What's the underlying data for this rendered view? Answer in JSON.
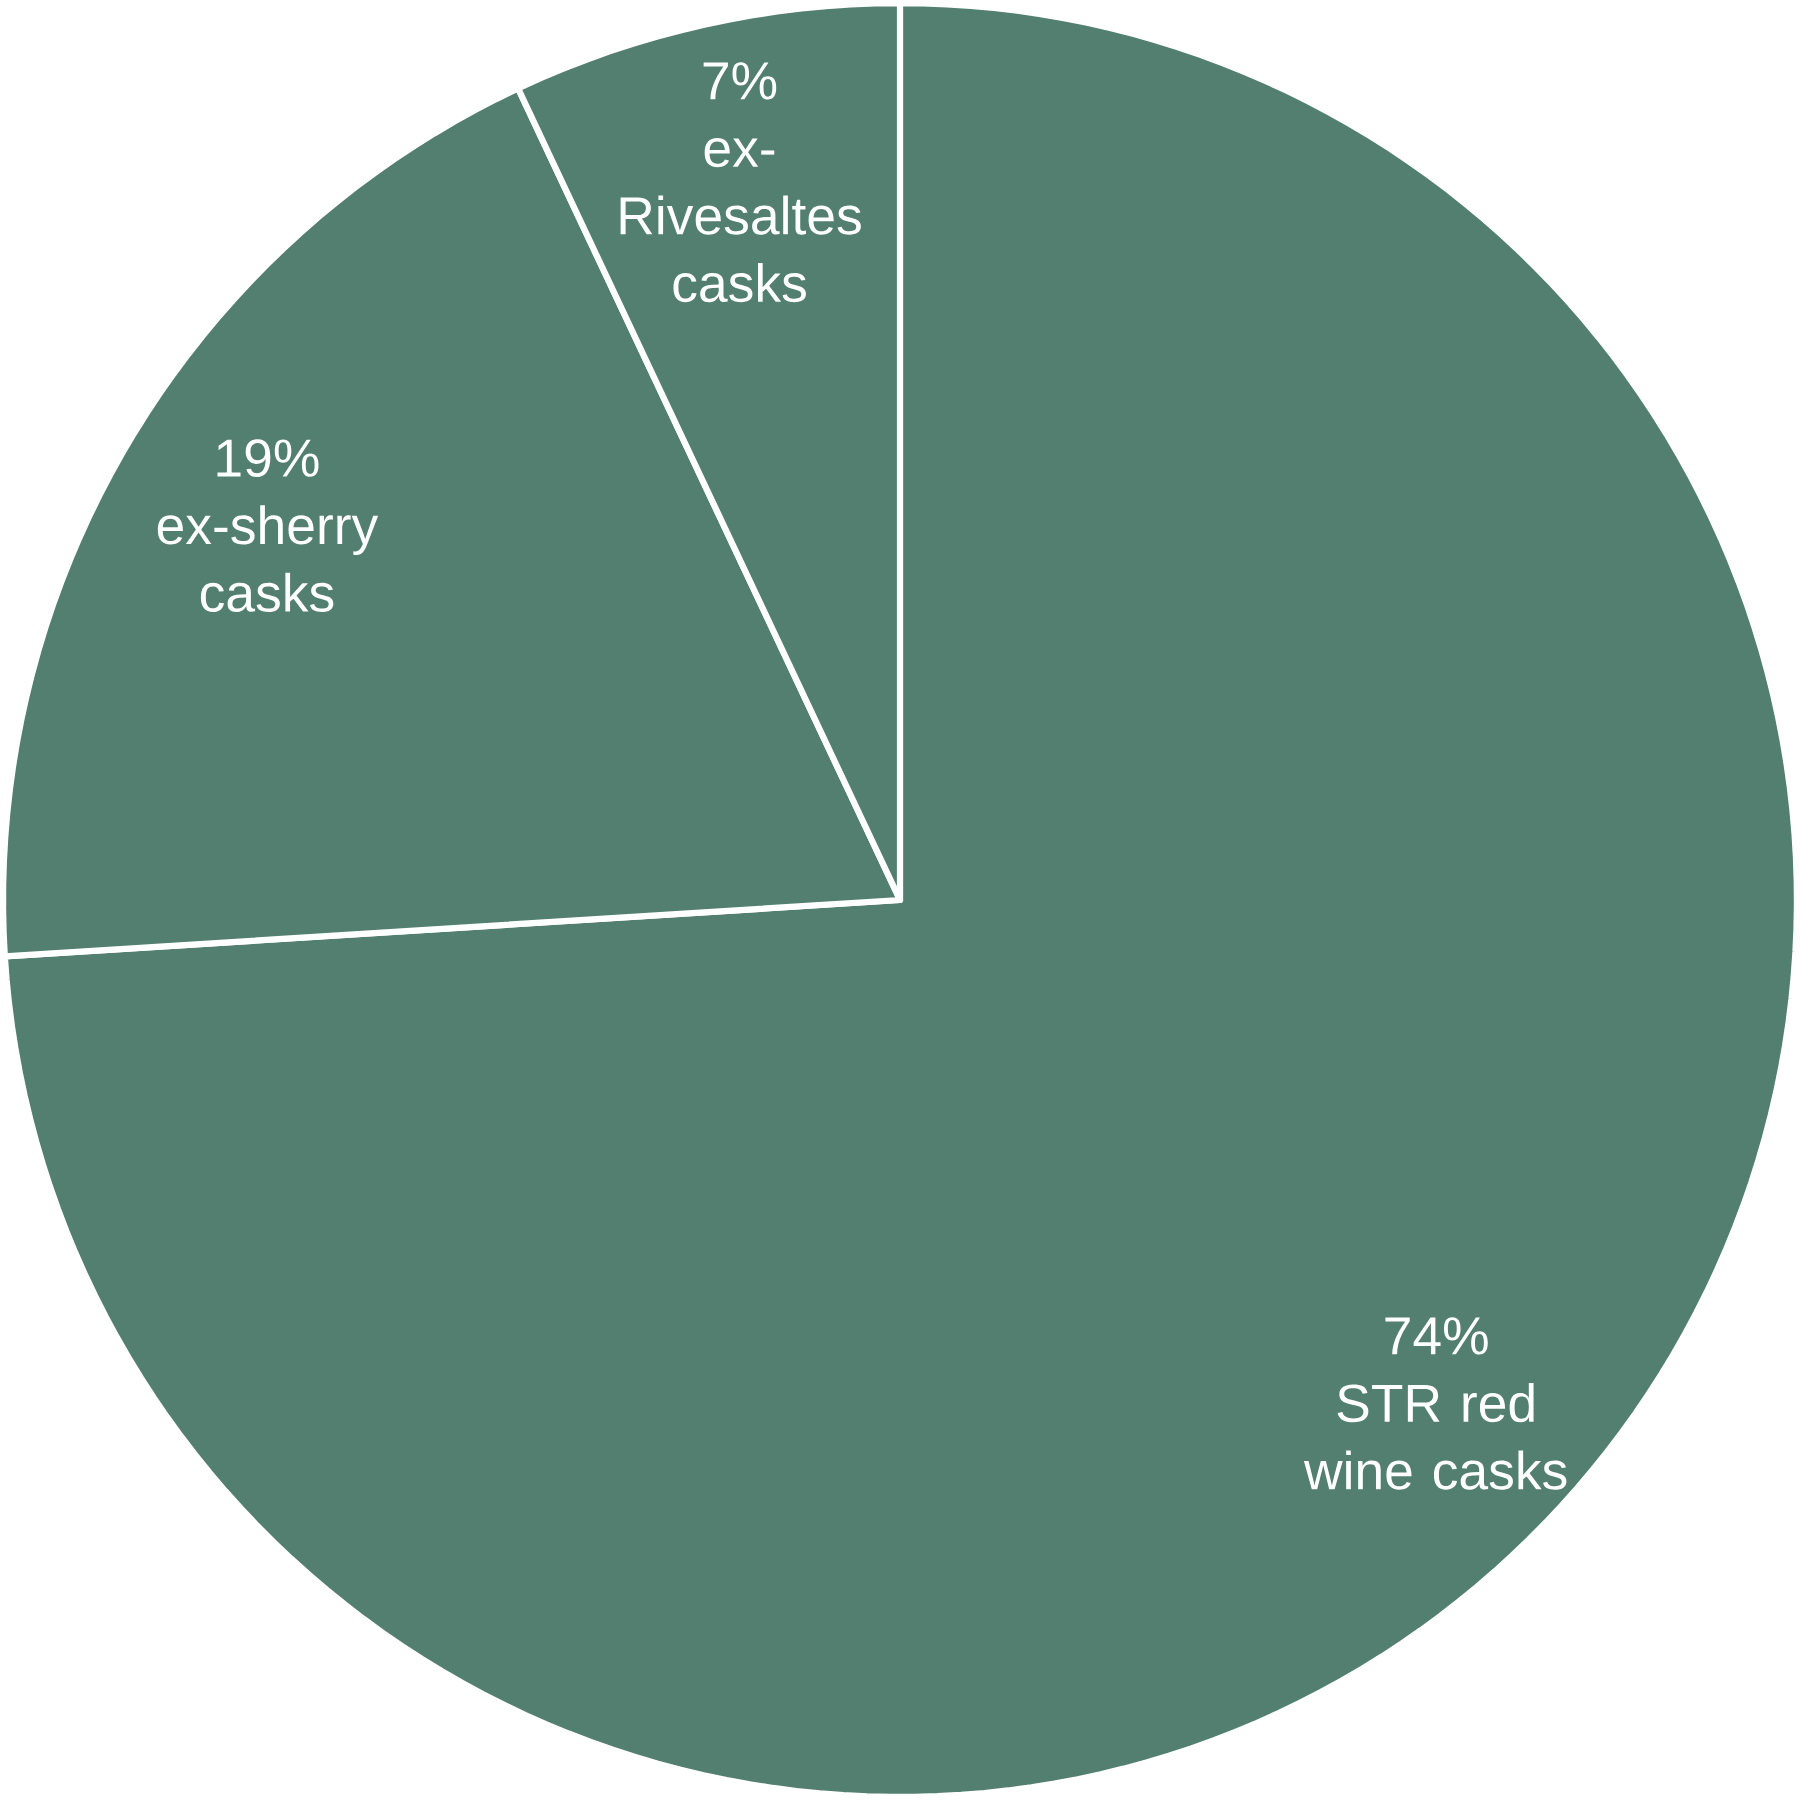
{
  "chart_data": {
    "type": "pie",
    "categories": [
      "STR red wine casks",
      "ex-sherry casks",
      "ex-Rivesaltes casks"
    ],
    "values": [
      74,
      19,
      7
    ],
    "colors": [
      "#527f6f",
      "#527f6f",
      "#527f6f"
    ],
    "value_labels": [
      "74%",
      "19%",
      "7%"
    ]
  }
}
